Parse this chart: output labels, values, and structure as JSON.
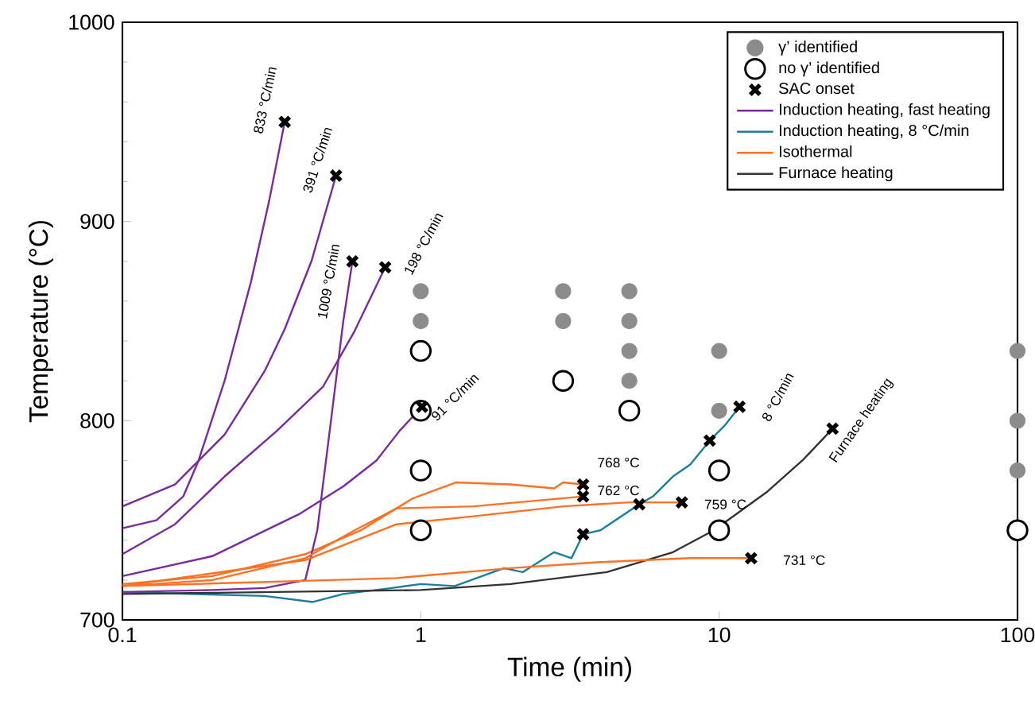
{
  "chart_data": {
    "type": "line",
    "xlabel": "Time (min)",
    "ylabel": "Temperature (°C)",
    "log": "x",
    "xlim": [
      0.1,
      100
    ],
    "ylim": [
      700,
      1000
    ],
    "xticks": [
      0.1,
      1,
      10,
      100
    ],
    "yticks": [
      700,
      800,
      900,
      1000
    ],
    "legend": "top right",
    "grid": false,
    "series": [
      {
        "type": "scatter",
        "name": "γ’ identified",
        "color": "#8c8c8c",
        "marker": "circle",
        "x": [
          1,
          1,
          3,
          3,
          5,
          5,
          5,
          5,
          10,
          10,
          100,
          100,
          100
        ],
        "values": [
          865,
          850,
          865,
          850,
          865,
          850,
          835,
          820,
          835,
          805,
          835,
          800,
          775
        ]
      },
      {
        "type": "scatter",
        "name": "no γ’ identified",
        "color": "#000000",
        "marker": "circle",
        "x": [
          1,
          1,
          1,
          1,
          3,
          5,
          10,
          10,
          100
        ],
        "values": [
          835,
          805,
          775,
          745,
          820,
          805,
          775,
          745,
          745
        ]
      },
      {
        "type": "scatter",
        "name": "SAC onset",
        "color": "#000000",
        "marker": "cross",
        "x": [
          0.35,
          0.52,
          0.59,
          0.76,
          1.01,
          3.5,
          3.5,
          7.5,
          3.5,
          5.4,
          9.3,
          11.7,
          12.8,
          24
        ],
        "values": [
          950,
          923,
          880,
          877,
          807,
          768,
          762,
          759,
          743,
          758,
          790,
          807,
          731,
          796
        ]
      },
      {
        "name": "Induction heating, fast heating",
        "color": "#7a2a9e",
        "x": [
          0.1,
          0.13,
          0.16,
          0.18,
          0.22,
          0.27,
          0.31,
          0.35
        ],
        "values": [
          746,
          750,
          762,
          780,
          820,
          870,
          910,
          950
        ]
      },
      {
        "name": "Induction heating, 8 °C/min",
        "color": "#1a7f9e",
        "x": [
          0.1,
          0.3,
          0.435,
          0.55,
          0.8,
          1,
          1.3,
          1.9,
          2.2,
          2.8,
          3.2,
          3.5,
          4,
          5.4,
          6,
          7,
          8,
          9.3,
          10.5,
          11.7
        ],
        "values": [
          714,
          712,
          709,
          713,
          716,
          718,
          717,
          726,
          724,
          734,
          731,
          743,
          745,
          758,
          762,
          772,
          778,
          790,
          798,
          807
        ]
      },
      {
        "name": "Isothermal",
        "color": "#ff7022",
        "x": [
          0.1,
          0.2,
          0.41,
          0.63,
          0.94,
          1.31,
          2,
          2.8,
          3,
          3.5
        ],
        "values": [
          718,
          722,
          733,
          745,
          761,
          769,
          768,
          766,
          769,
          768
        ]
      },
      {
        "name": "Furnace heating",
        "color": "#333333",
        "x": [
          0.1,
          1,
          2,
          4.2,
          7,
          9.6,
          14.4,
          19,
          24
        ],
        "values": [
          713,
          715,
          718,
          724,
          734,
          745,
          764,
          780,
          796
        ]
      },
      {
        "color": "#7a2a9e",
        "x": [
          0.1,
          0.15,
          0.22,
          0.3,
          0.35,
          0.43,
          0.52
        ],
        "values": [
          757,
          768,
          793,
          825,
          846,
          880,
          923
        ]
      },
      {
        "color": "#7a2a9e",
        "x": [
          0.1,
          0.2,
          0.3,
          0.41,
          0.45,
          0.5,
          0.55,
          0.59
        ],
        "values": [
          714,
          715,
          716,
          720,
          745,
          800,
          850,
          880
        ]
      },
      {
        "color": "#7a2a9e",
        "x": [
          0.1,
          0.15,
          0.22,
          0.33,
          0.47,
          0.6,
          0.76
        ],
        "values": [
          733,
          748,
          772,
          795,
          817,
          845,
          877
        ]
      },
      {
        "color": "#7a2a9e",
        "x": [
          0.1,
          0.2,
          0.39,
          0.55,
          0.71,
          0.85,
          1.01
        ],
        "values": [
          722,
          732,
          753,
          767,
          780,
          795,
          807
        ]
      },
      {
        "color": "#ff7022",
        "x": [
          0.1,
          0.2,
          0.41,
          0.6,
          0.83,
          1.5,
          2.5,
          3.5
        ],
        "values": [
          717,
          720,
          731,
          745,
          756,
          757,
          760,
          762
        ]
      },
      {
        "color": "#ff7022",
        "x": [
          0.1,
          0.41,
          0.83,
          1.5,
          3,
          5,
          7.5
        ],
        "values": [
          717,
          730,
          748,
          752,
          757,
          759,
          759
        ]
      },
      {
        "color": "#ff7022",
        "x": [
          0.1,
          0.5,
          0.83,
          2,
          4,
          8,
          12.8
        ],
        "values": [
          717,
          720,
          721,
          726,
          729,
          731,
          731
        ]
      }
    ],
    "annotations": [
      "833 °C/min",
      "391 °C/min",
      "1009 °C/min",
      "198 °C/min",
      "91 °C/min",
      "8 °C/min",
      "Furnace heating",
      "768 °C",
      "762 °C",
      "759 °C",
      "731 °C"
    ]
  }
}
